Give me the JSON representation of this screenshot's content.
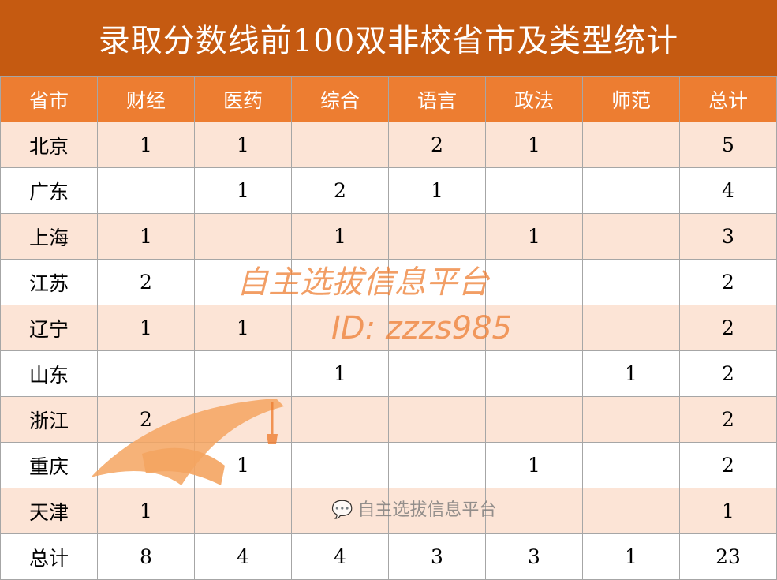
{
  "title": "录取分数线前100双非校省市及类型统计",
  "headers": [
    "省市",
    "财经",
    "医药",
    "综合",
    "语言",
    "政法",
    "师范",
    "总计"
  ],
  "rows": [
    [
      "北京",
      "1",
      "1",
      "",
      "2",
      "1",
      "",
      "5"
    ],
    [
      "广东",
      "",
      "1",
      "2",
      "1",
      "",
      "",
      "4"
    ],
    [
      "上海",
      "1",
      "",
      "1",
      "",
      "1",
      "",
      "3"
    ],
    [
      "江苏",
      "2",
      "",
      "",
      "",
      "",
      "",
      "2"
    ],
    [
      "辽宁",
      "1",
      "1",
      "",
      "",
      "",
      "",
      "2"
    ],
    [
      "山东",
      "",
      "",
      "1",
      "",
      "",
      "1",
      "2"
    ],
    [
      "浙江",
      "2",
      "",
      "",
      "",
      "",
      "",
      "2"
    ],
    [
      "重庆",
      "",
      "1",
      "",
      "",
      "1",
      "",
      "2"
    ],
    [
      "天津",
      "1",
      "",
      "",
      "",
      "",
      "",
      "1"
    ],
    [
      "总计",
      "8",
      "4",
      "4",
      "3",
      "3",
      "1",
      "23"
    ]
  ],
  "watermark": {
    "line1": "自主选拔信息平台",
    "line2": "ID: zzzs985",
    "wechat": "自主选拔信息平台",
    "icon": "graduation-cap-icon"
  },
  "colors": {
    "title_bg": "#c55a11",
    "header_bg": "#ed7d31",
    "stripe": "#fce4d6"
  }
}
